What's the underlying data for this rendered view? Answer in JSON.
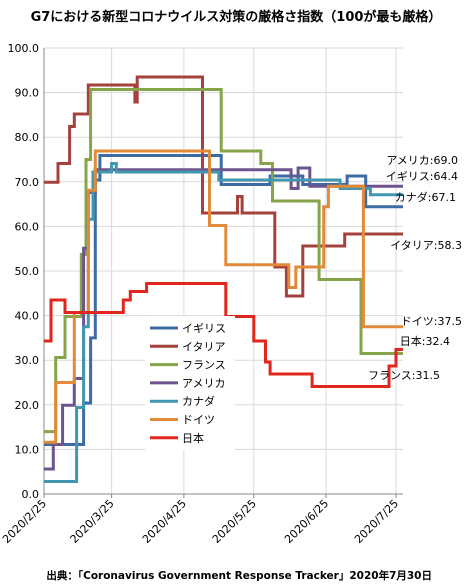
{
  "chart_data": {
    "type": "line",
    "title": "G7における新型コロナウイルス対策の厳格さ指数（100が最も厳格）",
    "source": "出典：「Coronavirus Government Response Tracker」2020年7月30日",
    "xlabel": "",
    "ylabel": "",
    "ylim": [
      0,
      100
    ],
    "yticks": [
      "0.0",
      "10.0",
      "20.0",
      "30.0",
      "40.0",
      "50.0",
      "60.0",
      "70.0",
      "80.0",
      "90.0",
      "100.0"
    ],
    "xticks": [
      "2020/2/25",
      "2020/3/25",
      "2020/4/25",
      "2020/5/25",
      "2020/6/25",
      "2020/7/25"
    ],
    "x_start": "2020/2/25",
    "x_end": "2020/7/28",
    "grid": true,
    "legend": "center-left",
    "series": [
      {
        "name": "イギリス",
        "color": "#3d6ba3",
        "end_label": "イギリス:64.4",
        "end_value": 64.4,
        "points": [
          [
            "2020/2/25",
            11.1
          ],
          [
            "2020/3/13",
            11.1
          ],
          [
            "2020/3/13",
            20.4
          ],
          [
            "2020/3/16",
            20.4
          ],
          [
            "2020/3/16",
            35
          ],
          [
            "2020/3/18",
            35
          ],
          [
            "2020/3/18",
            70.4
          ],
          [
            "2020/3/20",
            70.4
          ],
          [
            "2020/3/20",
            75.9
          ],
          [
            "2020/5/11",
            75.9
          ],
          [
            "2020/5/11",
            69.4
          ],
          [
            "2020/6/1",
            69.4
          ],
          [
            "2020/6/1",
            71.3
          ],
          [
            "2020/6/15",
            71.3
          ],
          [
            "2020/6/15",
            69.4
          ],
          [
            "2020/7/4",
            69.4
          ],
          [
            "2020/7/4",
            71.3
          ],
          [
            "2020/7/12",
            71.3
          ],
          [
            "2020/7/12",
            64.4
          ],
          [
            "2020/7/28",
            64.4
          ]
        ]
      },
      {
        "name": "イタリア",
        "color": "#a4413d",
        "end_label": "イタリア:58.3",
        "end_value": 58.3,
        "points": [
          [
            "2020/2/25",
            69.9
          ],
          [
            "2020/3/2",
            69.9
          ],
          [
            "2020/3/2",
            74.1
          ],
          [
            "2020/3/7",
            74.1
          ],
          [
            "2020/3/7",
            82.4
          ],
          [
            "2020/3/9",
            82.4
          ],
          [
            "2020/3/9",
            85.2
          ],
          [
            "2020/3/15",
            85.2
          ],
          [
            "2020/3/15",
            91.7
          ],
          [
            "2020/4/4",
            91.7
          ],
          [
            "2020/4/4",
            87.9
          ],
          [
            "2020/4/5",
            87.9
          ],
          [
            "2020/4/5",
            93.5
          ],
          [
            "2020/5/3",
            93.5
          ],
          [
            "2020/5/3",
            63
          ],
          [
            "2020/5/18",
            63
          ],
          [
            "2020/5/18",
            66.7
          ],
          [
            "2020/5/20",
            66.7
          ],
          [
            "2020/5/20",
            63
          ],
          [
            "2020/6/3",
            63
          ],
          [
            "2020/6/3",
            50.9
          ],
          [
            "2020/6/8",
            50.9
          ],
          [
            "2020/6/8",
            44.4
          ],
          [
            "2020/6/15",
            44.4
          ],
          [
            "2020/6/15",
            55.6
          ],
          [
            "2020/7/3",
            55.6
          ],
          [
            "2020/7/3",
            58.3
          ],
          [
            "2020/7/28",
            58.3
          ]
        ]
      },
      {
        "name": "フランス",
        "color": "#86a44a",
        "end_label": "フランス:31.5",
        "end_value": 31.5,
        "points": [
          [
            "2020/2/25",
            14
          ],
          [
            "2020/3/1",
            14
          ],
          [
            "2020/3/1",
            30.6
          ],
          [
            "2020/3/5",
            30.6
          ],
          [
            "2020/3/5",
            39.8
          ],
          [
            "2020/3/12",
            39.8
          ],
          [
            "2020/3/12",
            53.7
          ],
          [
            "2020/3/14",
            53.7
          ],
          [
            "2020/3/14",
            75
          ],
          [
            "2020/3/16",
            75
          ],
          [
            "2020/3/16",
            90.7
          ],
          [
            "2020/5/11",
            90.7
          ],
          [
            "2020/5/11",
            76.9
          ],
          [
            "2020/5/28",
            76.9
          ],
          [
            "2020/5/28",
            74.1
          ],
          [
            "2020/6/2",
            74.1
          ],
          [
            "2020/6/2",
            65.7
          ],
          [
            "2020/6/22",
            65.7
          ],
          [
            "2020/6/22",
            48.1
          ],
          [
            "2020/7/10",
            48.1
          ],
          [
            "2020/7/10",
            31.5
          ],
          [
            "2020/7/28",
            31.5
          ]
        ]
      },
      {
        "name": "アメリカ",
        "color": "#6e548d",
        "end_label": "アメリカ:69.0",
        "end_value": 69.0,
        "points": [
          [
            "2020/2/25",
            5.6
          ],
          [
            "2020/2/29",
            5.6
          ],
          [
            "2020/2/29",
            11.1
          ],
          [
            "2020/3/4",
            11.1
          ],
          [
            "2020/3/4",
            19.9
          ],
          [
            "2020/3/9",
            19.9
          ],
          [
            "2020/3/9",
            25.9
          ],
          [
            "2020/3/13",
            25.9
          ],
          [
            "2020/3/13",
            55.1
          ],
          [
            "2020/3/15",
            55.1
          ],
          [
            "2020/3/15",
            67.6
          ],
          [
            "2020/3/18",
            67.6
          ],
          [
            "2020/3/18",
            72.7
          ],
          [
            "2020/6/10",
            72.7
          ],
          [
            "2020/6/10",
            68.5
          ],
          [
            "2020/6/13",
            68.5
          ],
          [
            "2020/6/13",
            73.1
          ],
          [
            "2020/6/18",
            73.1
          ],
          [
            "2020/6/18",
            69
          ],
          [
            "2020/7/28",
            69
          ]
        ]
      },
      {
        "name": "カナダ",
        "color": "#4197af",
        "end_label": "カナダ:67.1",
        "end_value": 67.1,
        "points": [
          [
            "2020/2/25",
            2.8
          ],
          [
            "2020/3/10",
            2.8
          ],
          [
            "2020/3/10",
            19.4
          ],
          [
            "2020/3/13",
            19.4
          ],
          [
            "2020/3/13",
            37.5
          ],
          [
            "2020/3/15",
            37.5
          ],
          [
            "2020/3/15",
            61.6
          ],
          [
            "2020/3/17",
            61.6
          ],
          [
            "2020/3/17",
            72.2
          ],
          [
            "2020/3/25",
            72.2
          ],
          [
            "2020/3/25",
            74.1
          ],
          [
            "2020/3/27",
            74.1
          ],
          [
            "2020/3/27",
            72.2
          ],
          [
            "2020/5/10",
            72.2
          ],
          [
            "2020/5/10",
            70.4
          ],
          [
            "2020/7/1",
            70.4
          ],
          [
            "2020/7/1",
            68.5
          ],
          [
            "2020/7/14",
            68.5
          ],
          [
            "2020/7/14",
            67.1
          ],
          [
            "2020/7/28",
            67.1
          ]
        ]
      },
      {
        "name": "ドイツ",
        "color": "#e08a3a",
        "end_label": "ドイツ:37.5",
        "end_value": 37.5,
        "points": [
          [
            "2020/2/25",
            11.6
          ],
          [
            "2020/3/1",
            11.6
          ],
          [
            "2020/3/1",
            25
          ],
          [
            "2020/3/9",
            25
          ],
          [
            "2020/3/9",
            40.7
          ],
          [
            "2020/3/15",
            40.7
          ],
          [
            "2020/3/15",
            68.1
          ],
          [
            "2020/3/18",
            68.1
          ],
          [
            "2020/3/18",
            76.9
          ],
          [
            "2020/5/6",
            76.9
          ],
          [
            "2020/5/6",
            60.2
          ],
          [
            "2020/5/13",
            60.2
          ],
          [
            "2020/5/13",
            51.4
          ],
          [
            "2020/6/9",
            51.4
          ],
          [
            "2020/6/9",
            46.3
          ],
          [
            "2020/6/12",
            46.3
          ],
          [
            "2020/6/12",
            50.9
          ],
          [
            "2020/6/24",
            50.9
          ],
          [
            "2020/6/24",
            64.4
          ],
          [
            "2020/6/26",
            64.4
          ],
          [
            "2020/6/26",
            69
          ],
          [
            "2020/7/11",
            69
          ],
          [
            "2020/7/11",
            37.5
          ],
          [
            "2020/7/28",
            37.5
          ]
        ]
      },
      {
        "name": "日本",
        "color": "#e0261d",
        "end_label": "日本:32.4",
        "end_value": 32.4,
        "points": [
          [
            "2020/2/25",
            34.3
          ],
          [
            "2020/2/28",
            34.3
          ],
          [
            "2020/2/28",
            43.5
          ],
          [
            "2020/3/5",
            43.5
          ],
          [
            "2020/3/5",
            40.7
          ],
          [
            "2020/3/30",
            40.7
          ],
          [
            "2020/3/30",
            43.5
          ],
          [
            "2020/4/2",
            43.5
          ],
          [
            "2020/4/2",
            45.4
          ],
          [
            "2020/4/9",
            45.4
          ],
          [
            "2020/4/9",
            47.2
          ],
          [
            "2020/5/13",
            47.2
          ],
          [
            "2020/5/13",
            39.8
          ],
          [
            "2020/5/25",
            39.8
          ],
          [
            "2020/5/25",
            34.3
          ],
          [
            "2020/5/30",
            34.3
          ],
          [
            "2020/5/30",
            29.6
          ],
          [
            "2020/6/1",
            29.6
          ],
          [
            "2020/6/1",
            26.9
          ],
          [
            "2020/6/19",
            26.9
          ],
          [
            "2020/6/19",
            24.1
          ],
          [
            "2020/7/22",
            24.1
          ],
          [
            "2020/7/22",
            28.7
          ],
          [
            "2020/7/25",
            28.7
          ],
          [
            "2020/7/25",
            32.4
          ],
          [
            "2020/7/28",
            32.4
          ]
        ]
      }
    ]
  }
}
